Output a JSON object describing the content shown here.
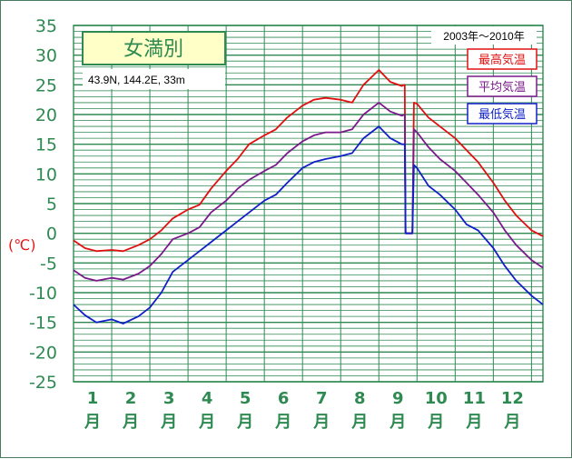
{
  "chart_data": {
    "type": "line",
    "title": "女満別",
    "subtitle": "43.9N,  144.2E,  33m",
    "period_label": "2003年～2010年",
    "ylabel": "(℃)",
    "ylim": [
      -25,
      35
    ],
    "yticks": [
      35,
      30,
      25,
      20,
      15,
      10,
      5,
      0,
      -5,
      -10,
      -15,
      -20,
      -25
    ],
    "xlim": [
      0,
      12
    ],
    "months": [
      "1",
      "2",
      "3",
      "4",
      "5",
      "6",
      "7",
      "8",
      "9",
      "10",
      "11",
      "12"
    ],
    "month_suffix": "月",
    "grid": true,
    "legend_position": "top-right",
    "series": [
      {
        "name": "最高気温",
        "color": "#e01010",
        "points": [
          [
            0,
            -1.2
          ],
          [
            0.3,
            -2.5
          ],
          [
            0.6,
            -3.0
          ],
          [
            1.0,
            -2.8
          ],
          [
            1.3,
            -3.0
          ],
          [
            1.7,
            -2.0
          ],
          [
            2.0,
            -1.0
          ],
          [
            2.3,
            0.5
          ],
          [
            2.6,
            2.5
          ],
          [
            3.0,
            4.0
          ],
          [
            3.3,
            4.8
          ],
          [
            3.6,
            7.5
          ],
          [
            4.0,
            10.5
          ],
          [
            4.3,
            12.5
          ],
          [
            4.6,
            15.0
          ],
          [
            5.0,
            16.5
          ],
          [
            5.3,
            17.5
          ],
          [
            5.6,
            19.5
          ],
          [
            6.0,
            21.5
          ],
          [
            6.3,
            22.5
          ],
          [
            6.6,
            22.8
          ],
          [
            7.0,
            22.5
          ],
          [
            7.3,
            22.0
          ],
          [
            7.6,
            25.0
          ],
          [
            8.0,
            27.5
          ],
          [
            8.3,
            25.5
          ],
          [
            8.6,
            24.8
          ],
          [
            8.68,
            25.0
          ],
          [
            8.7,
            0.0
          ],
          [
            8.78,
            0.0
          ],
          [
            8.88,
            0.0
          ],
          [
            8.92,
            22.0
          ],
          [
            9.0,
            21.8
          ],
          [
            9.3,
            19.5
          ],
          [
            9.6,
            18.0
          ],
          [
            10.0,
            16.0
          ],
          [
            10.3,
            14.0
          ],
          [
            10.6,
            12.0
          ],
          [
            11.0,
            8.5
          ],
          [
            11.3,
            5.5
          ],
          [
            11.6,
            3.0
          ],
          [
            12.0,
            0.5
          ],
          [
            12.3,
            -0.5
          ]
        ]
      },
      {
        "name": "平均気温",
        "color": "#7a1a8a",
        "points": [
          [
            0,
            -6.2
          ],
          [
            0.3,
            -7.5
          ],
          [
            0.6,
            -8.0
          ],
          [
            1.0,
            -7.5
          ],
          [
            1.3,
            -7.8
          ],
          [
            1.7,
            -6.8
          ],
          [
            2.0,
            -5.5
          ],
          [
            2.3,
            -3.5
          ],
          [
            2.6,
            -1.0
          ],
          [
            3.0,
            0.0
          ],
          [
            3.3,
            1.0
          ],
          [
            3.6,
            3.5
          ],
          [
            4.0,
            5.5
          ],
          [
            4.3,
            7.5
          ],
          [
            4.6,
            9.0
          ],
          [
            5.0,
            10.5
          ],
          [
            5.3,
            11.5
          ],
          [
            5.6,
            13.5
          ],
          [
            6.0,
            15.5
          ],
          [
            6.3,
            16.5
          ],
          [
            6.6,
            17.0
          ],
          [
            7.0,
            17.0
          ],
          [
            7.3,
            17.5
          ],
          [
            7.6,
            20.0
          ],
          [
            8.0,
            22.0
          ],
          [
            8.3,
            20.5
          ],
          [
            8.6,
            19.8
          ],
          [
            8.68,
            20.0
          ],
          [
            8.7,
            0.0
          ],
          [
            8.78,
            0.0
          ],
          [
            8.88,
            0.0
          ],
          [
            8.92,
            17.5
          ],
          [
            9.0,
            17.0
          ],
          [
            9.3,
            14.5
          ],
          [
            9.6,
            12.5
          ],
          [
            10.0,
            10.5
          ],
          [
            10.3,
            8.5
          ],
          [
            10.6,
            6.5
          ],
          [
            11.0,
            3.5
          ],
          [
            11.3,
            0.5
          ],
          [
            11.6,
            -2.0
          ],
          [
            12.0,
            -4.5
          ],
          [
            12.3,
            -5.8
          ]
        ]
      },
      {
        "name": "最低気温",
        "color": "#1020c8",
        "points": [
          [
            0,
            -12.0
          ],
          [
            0.3,
            -13.8
          ],
          [
            0.6,
            -15.0
          ],
          [
            1.0,
            -14.5
          ],
          [
            1.3,
            -15.2
          ],
          [
            1.7,
            -14.0
          ],
          [
            2.0,
            -12.5
          ],
          [
            2.3,
            -10.0
          ],
          [
            2.6,
            -6.5
          ],
          [
            3.0,
            -4.5
          ],
          [
            3.3,
            -3.0
          ],
          [
            3.6,
            -1.5
          ],
          [
            4.0,
            0.5
          ],
          [
            4.3,
            2.0
          ],
          [
            4.6,
            3.5
          ],
          [
            5.0,
            5.5
          ],
          [
            5.3,
            6.5
          ],
          [
            5.6,
            8.5
          ],
          [
            6.0,
            11.0
          ],
          [
            6.3,
            12.0
          ],
          [
            6.6,
            12.5
          ],
          [
            7.0,
            13.0
          ],
          [
            7.3,
            13.5
          ],
          [
            7.6,
            16.0
          ],
          [
            8.0,
            18.0
          ],
          [
            8.3,
            16.0
          ],
          [
            8.6,
            15.0
          ],
          [
            8.68,
            15.0
          ],
          [
            8.7,
            0.0
          ],
          [
            8.78,
            0.0
          ],
          [
            8.88,
            0.0
          ],
          [
            8.92,
            11.5
          ],
          [
            9.0,
            11.0
          ],
          [
            9.3,
            8.0
          ],
          [
            9.6,
            6.5
          ],
          [
            10.0,
            4.0
          ],
          [
            10.3,
            1.5
          ],
          [
            10.6,
            0.5
          ],
          [
            11.0,
            -2.5
          ],
          [
            11.3,
            -5.5
          ],
          [
            11.6,
            -8.0
          ],
          [
            12.0,
            -10.5
          ],
          [
            12.3,
            -12.0
          ]
        ]
      }
    ]
  },
  "colors": {
    "grid": "#2f8a52",
    "title_box_fill": "#ffffc8",
    "title_box_border": "#2f8a52",
    "axis_text": "#2f8a52",
    "unit_text": "#e01a1a"
  }
}
